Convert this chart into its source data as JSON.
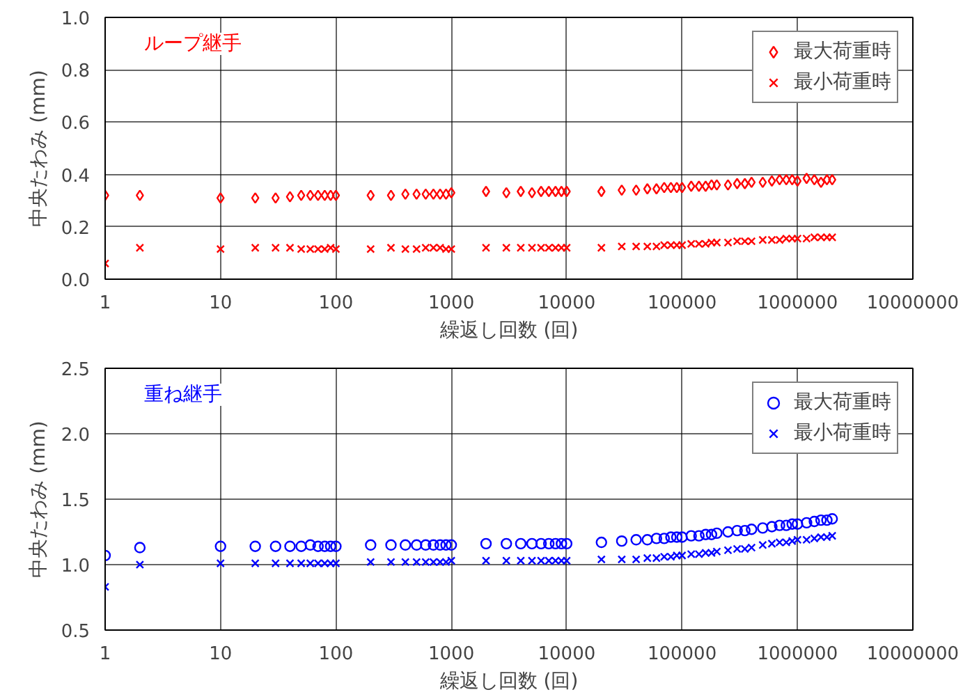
{
  "chart_data": [
    {
      "type": "scatter",
      "xlabel": "繰返し回数 (回)",
      "ylabel": "中央たわみ (mm)",
      "annotations": [
        "ループ継手"
      ],
      "log": "x",
      "xlim": [
        1,
        10000000
      ],
      "xticks": [
        1,
        10,
        100,
        1000,
        10000,
        100000,
        1000000,
        10000000
      ],
      "ylim": [
        0,
        1.0
      ],
      "yticks": [
        {
          "value": 0,
          "label": "0.0"
        },
        0.2,
        0.4,
        0.6,
        0.8,
        {
          "value": 1,
          "label": "1.0"
        }
      ],
      "grid": true,
      "legend": "top right",
      "x": [
        1,
        2,
        10,
        20,
        30,
        40,
        50,
        60,
        70,
        80,
        90,
        100,
        200,
        300,
        400,
        500,
        600,
        700,
        800,
        900,
        1000,
        2000,
        3000,
        4000,
        5000,
        6000,
        7000,
        8000,
        9000,
        10000,
        20000,
        30000,
        40000,
        50000,
        60000,
        70000,
        80000,
        90000,
        100000,
        120000,
        140000,
        160000,
        180000,
        200000,
        250000,
        300000,
        350000,
        400000,
        500000,
        600000,
        700000,
        800000,
        900000,
        1000000,
        1200000,
        1400000,
        1600000,
        1800000,
        2000000
      ],
      "series": [
        {
          "name": "最大荷重時",
          "color": "#ff0000",
          "marker": "diamond",
          "values": [
            0.32,
            0.32,
            0.31,
            0.31,
            0.31,
            0.315,
            0.32,
            0.32,
            0.32,
            0.32,
            0.32,
            0.32,
            0.32,
            0.32,
            0.325,
            0.325,
            0.325,
            0.325,
            0.325,
            0.325,
            0.33,
            0.335,
            0.33,
            0.335,
            0.33,
            0.335,
            0.335,
            0.335,
            0.335,
            0.335,
            0.335,
            0.34,
            0.34,
            0.345,
            0.345,
            0.35,
            0.35,
            0.35,
            0.35,
            0.355,
            0.355,
            0.355,
            0.36,
            0.36,
            0.36,
            0.365,
            0.365,
            0.37,
            0.37,
            0.375,
            0.38,
            0.38,
            0.38,
            0.375,
            0.385,
            0.38,
            0.37,
            0.38,
            0.38
          ]
        },
        {
          "name": "最小荷重時",
          "color": "#ff0000",
          "marker": "cross",
          "values": [
            0.06,
            0.12,
            0.115,
            0.12,
            0.12,
            0.12,
            0.115,
            0.115,
            0.115,
            0.115,
            0.12,
            0.115,
            0.115,
            0.12,
            0.115,
            0.115,
            0.12,
            0.12,
            0.12,
            0.115,
            0.115,
            0.12,
            0.12,
            0.12,
            0.12,
            0.12,
            0.12,
            0.12,
            0.12,
            0.12,
            0.12,
            0.125,
            0.125,
            0.125,
            0.125,
            0.13,
            0.13,
            0.13,
            0.13,
            0.135,
            0.135,
            0.135,
            0.14,
            0.14,
            0.14,
            0.145,
            0.145,
            0.145,
            0.15,
            0.15,
            0.15,
            0.155,
            0.155,
            0.155,
            0.155,
            0.16,
            0.16,
            0.16,
            0.16
          ]
        }
      ]
    },
    {
      "type": "scatter",
      "xlabel": "繰返し回数 (回)",
      "ylabel": "中央たわみ (mm)",
      "annotations": [
        "重ね継手"
      ],
      "log": "x",
      "xlim": [
        1,
        10000000
      ],
      "xticks": [
        1,
        10,
        100,
        1000,
        10000,
        100000,
        1000000,
        10000000
      ],
      "ylim": [
        0.5,
        2.5
      ],
      "yticks": [
        0.5,
        {
          "value": 1,
          "label": "1.0"
        },
        1.5,
        {
          "value": 2,
          "label": "2.0"
        },
        2.5
      ],
      "grid": true,
      "legend": "top right",
      "x": [
        1,
        2,
        10,
        20,
        30,
        40,
        50,
        60,
        70,
        80,
        90,
        100,
        200,
        300,
        400,
        500,
        600,
        700,
        800,
        900,
        1000,
        2000,
        3000,
        4000,
        5000,
        6000,
        7000,
        8000,
        9000,
        10000,
        20000,
        30000,
        40000,
        50000,
        60000,
        70000,
        80000,
        90000,
        100000,
        120000,
        140000,
        160000,
        180000,
        200000,
        250000,
        300000,
        350000,
        400000,
        500000,
        600000,
        700000,
        800000,
        900000,
        1000000,
        1200000,
        1400000,
        1600000,
        1800000,
        2000000
      ],
      "series": [
        {
          "name": "最大荷重時",
          "color": "#0000ff",
          "marker": "circle",
          "values": [
            1.07,
            1.13,
            1.14,
            1.14,
            1.14,
            1.14,
            1.14,
            1.15,
            1.14,
            1.14,
            1.14,
            1.14,
            1.15,
            1.15,
            1.15,
            1.15,
            1.15,
            1.15,
            1.15,
            1.15,
            1.15,
            1.16,
            1.16,
            1.16,
            1.16,
            1.16,
            1.16,
            1.16,
            1.16,
            1.16,
            1.17,
            1.18,
            1.19,
            1.19,
            1.2,
            1.2,
            1.21,
            1.21,
            1.21,
            1.22,
            1.22,
            1.23,
            1.23,
            1.24,
            1.25,
            1.26,
            1.26,
            1.27,
            1.28,
            1.29,
            1.3,
            1.3,
            1.31,
            1.31,
            1.32,
            1.33,
            1.34,
            1.34,
            1.35
          ]
        },
        {
          "name": "最小荷重時",
          "color": "#0000ff",
          "marker": "cross",
          "values": [
            0.83,
            1.0,
            1.01,
            1.01,
            1.01,
            1.01,
            1.01,
            1.01,
            1.01,
            1.01,
            1.01,
            1.01,
            1.02,
            1.02,
            1.02,
            1.02,
            1.02,
            1.02,
            1.02,
            1.02,
            1.03,
            1.03,
            1.03,
            1.03,
            1.03,
            1.03,
            1.03,
            1.03,
            1.03,
            1.03,
            1.04,
            1.04,
            1.04,
            1.05,
            1.05,
            1.06,
            1.06,
            1.07,
            1.07,
            1.08,
            1.08,
            1.09,
            1.09,
            1.1,
            1.11,
            1.12,
            1.12,
            1.13,
            1.15,
            1.16,
            1.17,
            1.17,
            1.18,
            1.19,
            1.19,
            1.2,
            1.21,
            1.21,
            1.22
          ]
        }
      ]
    }
  ]
}
